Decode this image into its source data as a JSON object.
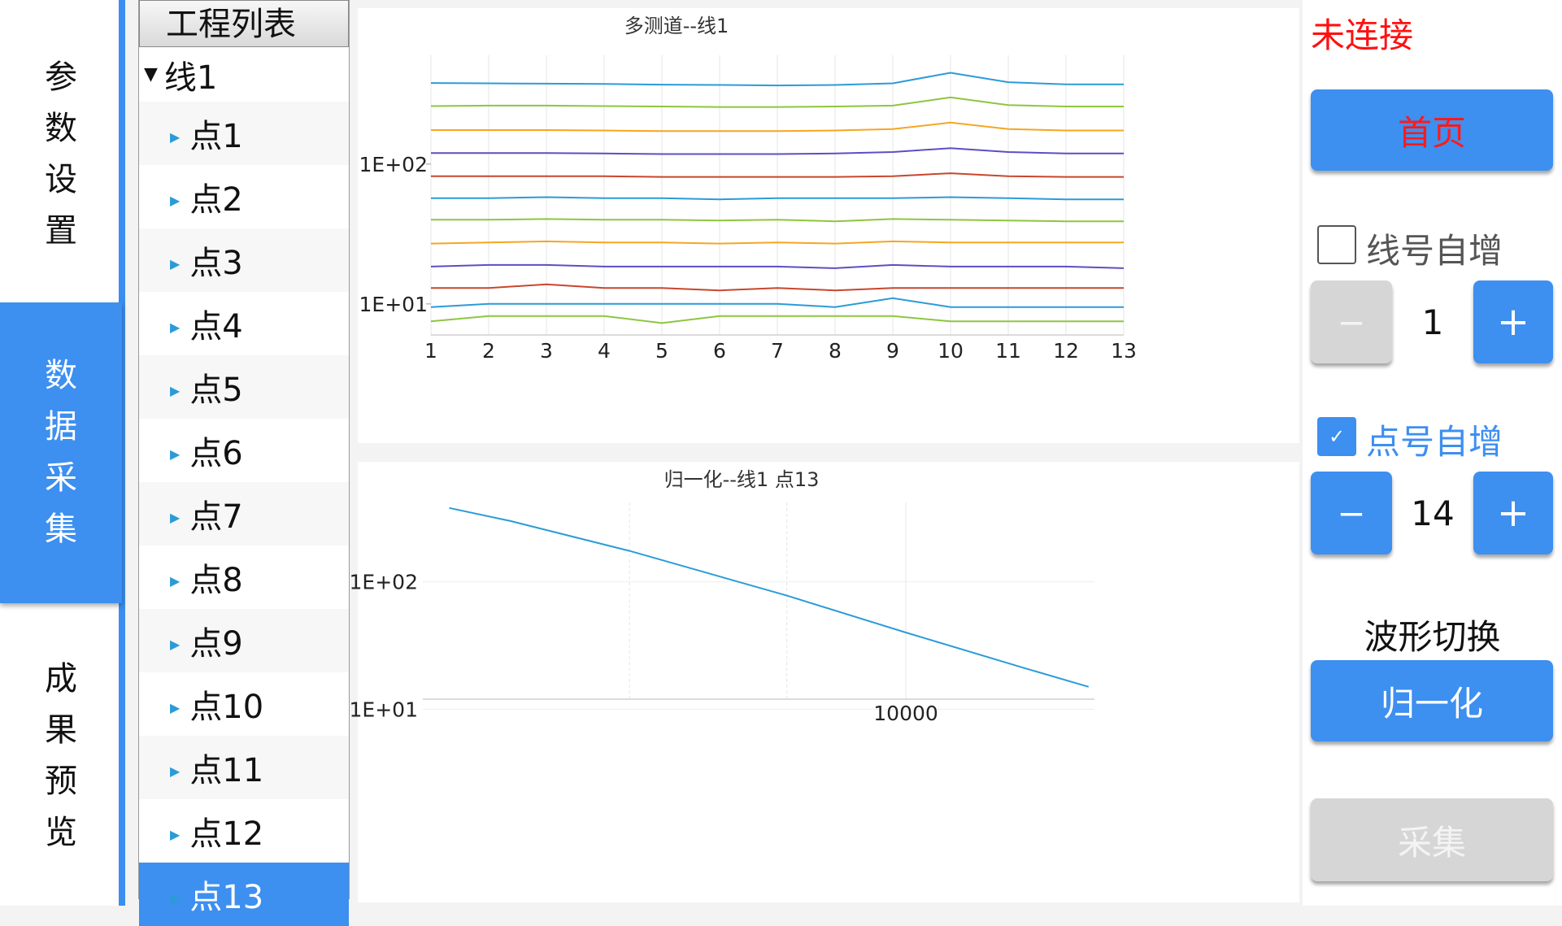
{
  "nav": {
    "tabs": [
      {
        "label": "参数设置",
        "chars": [
          "参",
          "数",
          "设",
          "置"
        ],
        "active": false
      },
      {
        "label": "数据采集",
        "chars": [
          "数",
          "据",
          "采",
          "集"
        ],
        "active": true
      },
      {
        "label": "成果预览",
        "chars": [
          "成",
          "果",
          "预",
          "览"
        ],
        "active": false
      }
    ]
  },
  "project_list": {
    "header": "工程列表",
    "line": "线1",
    "points": [
      "点1",
      "点2",
      "点3",
      "点4",
      "点5",
      "点6",
      "点7",
      "点8",
      "点9",
      "点10",
      "点11",
      "点12",
      "点13"
    ],
    "selected": "点13"
  },
  "status": {
    "text": "未连接",
    "color": "#ff1010"
  },
  "buttons": {
    "home": "首页",
    "line_auto_label": "线号自增",
    "line_auto_checked": false,
    "line_number": "1",
    "point_auto_label": "点号自增",
    "point_auto_checked": true,
    "point_number": "14",
    "minus": "−",
    "plus": "+",
    "wave_switch_label": "波形切换",
    "wave_mode": "归一化",
    "acquire": "采集"
  },
  "chart_data": [
    {
      "type": "line",
      "title": "多测道--线1",
      "x": [
        1,
        2,
        3,
        4,
        5,
        6,
        7,
        8,
        9,
        10,
        11,
        12,
        13
      ],
      "x_ticks": [
        "1",
        "2",
        "3",
        "4",
        "5",
        "6",
        "7",
        "8",
        "9",
        "10",
        "11",
        "12",
        "13"
      ],
      "y_scale": "log",
      "y_ticks": [
        "1E+02",
        "1E+01"
      ],
      "ylim": [
        6,
        600
      ],
      "grid": true,
      "series_colors": [
        "#2b9bd8",
        "#8dc63f",
        "#f5a623",
        "#5b4fc4",
        "#c8462e",
        "#2b9bd8",
        "#8dc63f",
        "#f5a623",
        "#5b4fc4",
        "#c8462e",
        "#2b9bd8",
        "#8dc63f"
      ],
      "series": [
        {
          "values": [
            380,
            378,
            376,
            374,
            370,
            368,
            365,
            368,
            378,
            450,
            385,
            372,
            372
          ]
        },
        {
          "values": [
            260,
            262,
            262,
            260,
            258,
            256,
            256,
            258,
            262,
            300,
            264,
            258,
            258
          ]
        },
        {
          "values": [
            175,
            175,
            175,
            174,
            172,
            172,
            172,
            174,
            178,
            198,
            178,
            174,
            174
          ]
        },
        {
          "values": [
            120,
            120,
            120,
            119,
            118,
            118,
            118,
            119,
            122,
            130,
            122,
            119,
            119
          ]
        },
        {
          "values": [
            82,
            82,
            82,
            82,
            81,
            81,
            81,
            81,
            82,
            86,
            82,
            81,
            81
          ]
        },
        {
          "values": [
            57,
            57,
            58,
            57,
            57,
            56,
            57,
            57,
            57,
            58,
            57,
            56,
            56
          ]
        },
        {
          "values": [
            40,
            40,
            40.5,
            40,
            40,
            39.5,
            40,
            39,
            40.5,
            40,
            39.5,
            39,
            39
          ]
        },
        {
          "values": [
            27,
            27.5,
            28,
            27.5,
            27.5,
            27,
            27.5,
            27,
            28,
            27.5,
            27.5,
            27.5,
            27.5
          ]
        },
        {
          "values": [
            18.5,
            19,
            19,
            18.5,
            18.5,
            18.5,
            18.5,
            18,
            19,
            18.5,
            18.5,
            18.5,
            18
          ]
        },
        {
          "values": [
            13,
            13,
            13.8,
            13,
            13,
            12.5,
            13,
            12.5,
            13,
            13,
            13,
            13,
            13
          ]
        },
        {
          "values": [
            9.5,
            10,
            10,
            10,
            10,
            10,
            10,
            9.5,
            11,
            9.5,
            9.5,
            9.5,
            9.5
          ]
        },
        {
          "values": [
            7.5,
            8.2,
            8.2,
            8.2,
            7.3,
            8.2,
            8.2,
            8.2,
            8.2,
            7.5,
            7.5,
            7.5,
            7.5
          ]
        }
      ]
    },
    {
      "type": "line",
      "title": "归一化--线1 点13",
      "x_scale": "log",
      "x_ticks": [
        "10000"
      ],
      "y_scale": "log",
      "y_ticks": [
        "1E+02",
        "1E+01"
      ],
      "grid": true,
      "series": [
        {
          "color": "#2b9bd8",
          "x": [
            700,
            1000,
            2000,
            5000,
            10000,
            20000,
            29000
          ],
          "values": [
            380,
            300,
            175,
            78,
            40,
            21,
            15
          ]
        }
      ]
    }
  ]
}
